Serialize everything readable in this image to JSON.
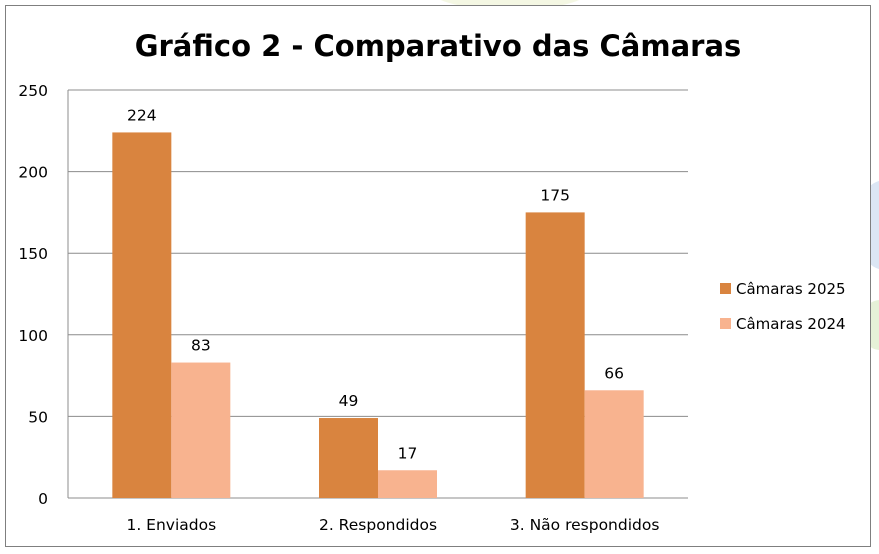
{
  "chart_data": {
    "type": "bar",
    "title": "Gráfico 2 - Comparativo das Câmaras",
    "categories": [
      "1. Enviados",
      "2. Respondidos",
      "3. Não respondidos"
    ],
    "series": [
      {
        "name": "Câmaras 2025",
        "values": [
          224,
          49,
          175
        ],
        "color": "#d9843f"
      },
      {
        "name": "Câmaras 2024",
        "values": [
          83,
          17,
          66
        ],
        "color": "#f8b38f"
      }
    ],
    "ylim": [
      0,
      250
    ],
    "yticks": [
      "0",
      "50",
      "100",
      "150",
      "200",
      "250"
    ],
    "grid": true,
    "legend": "right"
  }
}
